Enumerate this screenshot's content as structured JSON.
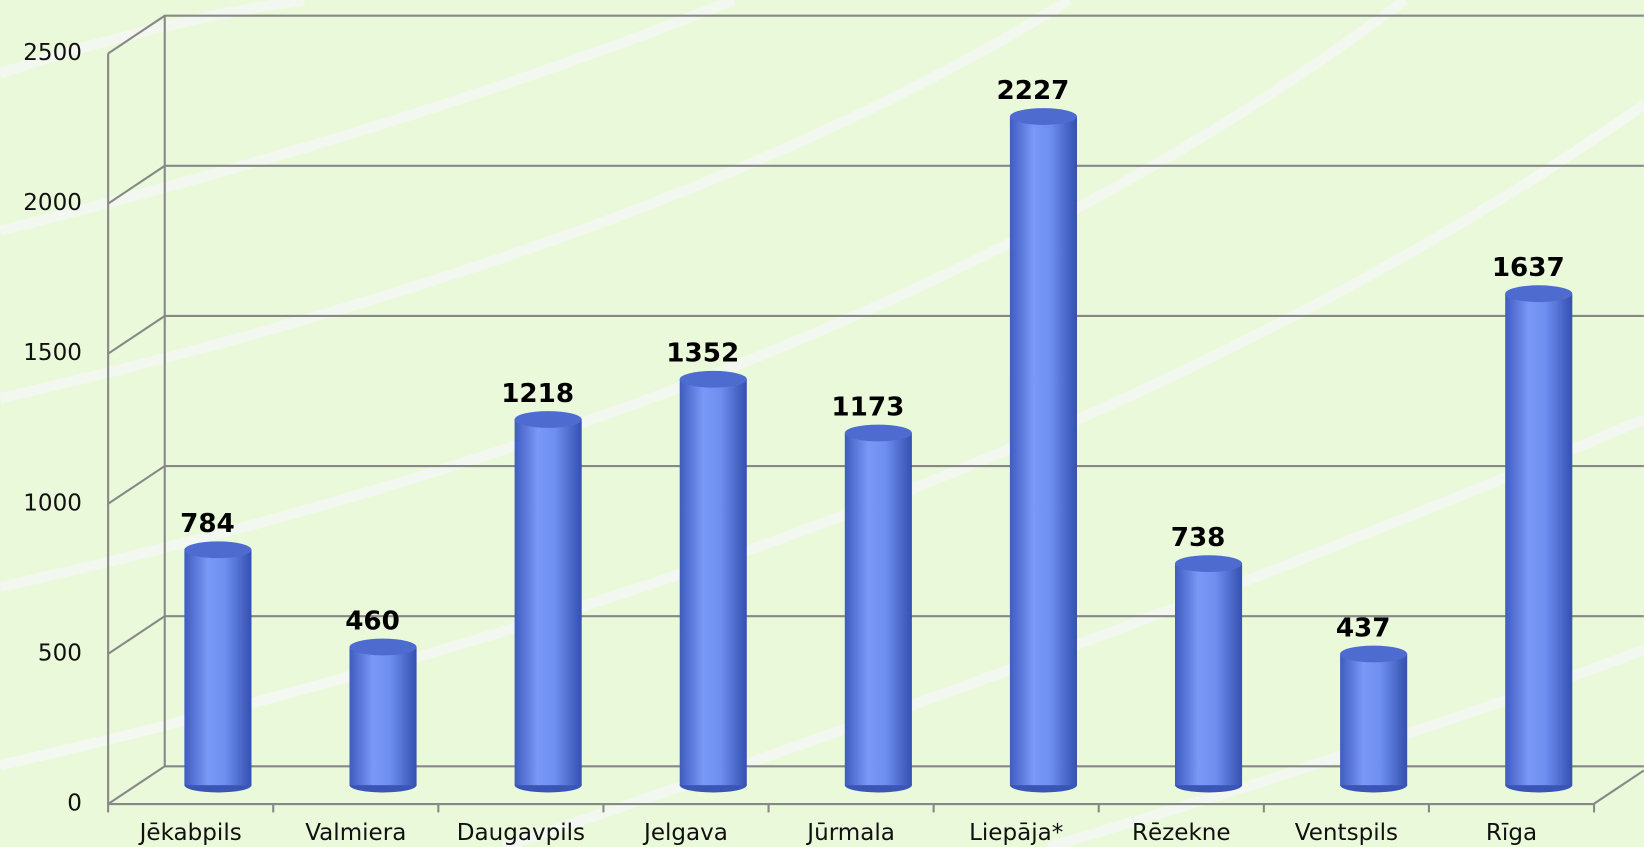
{
  "chart_data": {
    "type": "bar",
    "categories": [
      "Jēkabpils",
      "Valmiera",
      "Daugavpils",
      "Jelgava",
      "Jūrmala",
      "Liepāja*",
      "Rēzekne",
      "Ventspils",
      "Rīga"
    ],
    "values": [
      784,
      460,
      1218,
      1352,
      1173,
      2227,
      738,
      437,
      1637
    ],
    "color": "#6f8ff0",
    "ylim": [
      0,
      2500
    ],
    "yticks": [
      0,
      500,
      1000,
      1500,
      2000,
      2500
    ],
    "grid": true
  }
}
